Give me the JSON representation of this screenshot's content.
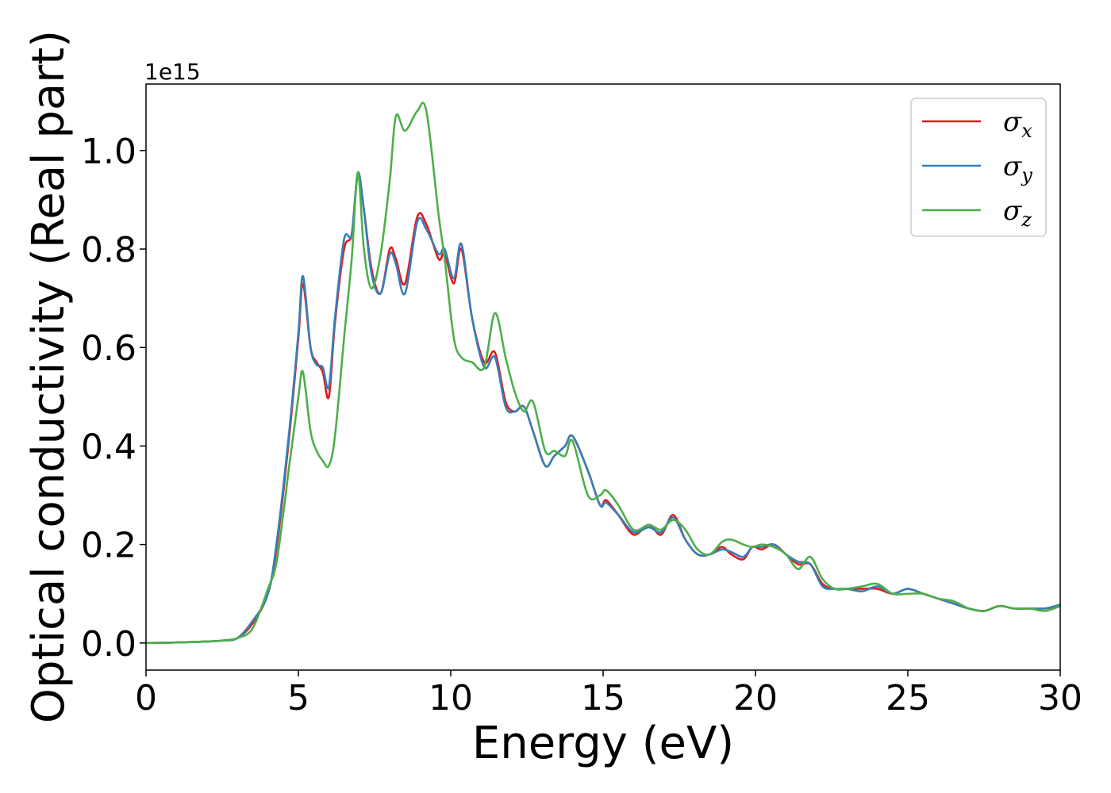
{
  "chart_data": {
    "type": "line",
    "title": "",
    "xlabel": "Energy (eV)",
    "ylabel": "Optical conductivity (Real part)",
    "y_offset_label": "1e15",
    "xlim": [
      0,
      30
    ],
    "ylim": [
      -0.055,
      1.135
    ],
    "xticks": [
      0,
      5,
      10,
      15,
      20,
      25,
      30
    ],
    "xtick_labels": [
      "0",
      "5",
      "10",
      "15",
      "20",
      "25",
      "30"
    ],
    "yticks": [
      0.0,
      0.2,
      0.4,
      0.6,
      0.8,
      1.0
    ],
    "ytick_labels": [
      "0.0",
      "0.2",
      "0.4",
      "0.6",
      "0.8",
      "1.0"
    ],
    "grid": false,
    "legend_position": "top-right",
    "series": [
      {
        "name": "σx",
        "symbol": "σ",
        "subscript": "x",
        "color": "#e41a1c",
        "x": [
          0,
          1,
          2,
          2.5,
          3,
          3.5,
          4,
          4.3,
          4.7,
          5.0,
          5.15,
          5.4,
          5.6,
          5.8,
          6.0,
          6.2,
          6.5,
          6.75,
          6.95,
          7.15,
          7.4,
          7.7,
          8.0,
          8.2,
          8.5,
          8.9,
          9.2,
          9.6,
          9.8,
          10.1,
          10.35,
          10.7,
          11.1,
          11.45,
          11.8,
          12.1,
          12.4,
          12.7,
          13.1,
          13.4,
          13.75,
          14.0,
          14.5,
          14.9,
          15.1,
          15.5,
          16.0,
          16.5,
          16.9,
          17.3,
          17.7,
          18.1,
          18.5,
          18.9,
          19.2,
          19.6,
          19.9,
          20.2,
          20.6,
          21.0,
          21.4,
          21.8,
          22.2,
          22.6,
          23.0,
          23.5,
          24.0,
          24.5,
          25.0,
          25.5,
          26.0,
          26.5,
          27.0,
          27.5,
          28.0,
          28.5,
          29.0,
          29.5,
          30.0
        ],
        "values": [
          0.0,
          0.001,
          0.003,
          0.005,
          0.01,
          0.04,
          0.1,
          0.2,
          0.42,
          0.62,
          0.73,
          0.6,
          0.57,
          0.55,
          0.5,
          0.65,
          0.8,
          0.83,
          0.95,
          0.88,
          0.76,
          0.71,
          0.8,
          0.78,
          0.73,
          0.865,
          0.85,
          0.78,
          0.79,
          0.73,
          0.8,
          0.66,
          0.57,
          0.59,
          0.49,
          0.47,
          0.48,
          0.43,
          0.36,
          0.38,
          0.4,
          0.42,
          0.35,
          0.28,
          0.29,
          0.26,
          0.22,
          0.24,
          0.22,
          0.26,
          0.21,
          0.18,
          0.18,
          0.195,
          0.18,
          0.17,
          0.195,
          0.19,
          0.2,
          0.18,
          0.16,
          0.16,
          0.12,
          0.11,
          0.11,
          0.11,
          0.11,
          0.1,
          0.11,
          0.1,
          0.09,
          0.08,
          0.07,
          0.065,
          0.075,
          0.07,
          0.07,
          0.07,
          0.075
        ]
      },
      {
        "name": "σy",
        "symbol": "σ",
        "subscript": "y",
        "color": "#377eb8",
        "x": [
          0,
          1,
          2,
          2.5,
          3,
          3.5,
          4,
          4.3,
          4.7,
          5.0,
          5.15,
          5.4,
          5.6,
          5.8,
          6.0,
          6.2,
          6.5,
          6.75,
          6.95,
          7.15,
          7.4,
          7.7,
          8.0,
          8.2,
          8.5,
          8.9,
          9.2,
          9.6,
          9.8,
          10.1,
          10.35,
          10.7,
          11.1,
          11.45,
          11.8,
          12.1,
          12.4,
          12.7,
          13.1,
          13.4,
          13.75,
          14.0,
          14.5,
          14.9,
          15.1,
          15.5,
          16.0,
          16.5,
          16.9,
          17.3,
          17.7,
          18.1,
          18.5,
          18.9,
          19.2,
          19.6,
          19.9,
          20.2,
          20.6,
          21.0,
          21.4,
          21.8,
          22.2,
          22.6,
          23.0,
          23.5,
          24.0,
          24.5,
          25.0,
          25.5,
          26.0,
          26.5,
          27.0,
          27.5,
          28.0,
          28.5,
          29.0,
          29.5,
          30.0
        ],
        "values": [
          0.0,
          0.001,
          0.003,
          0.005,
          0.01,
          0.045,
          0.1,
          0.21,
          0.43,
          0.63,
          0.745,
          0.6,
          0.565,
          0.56,
          0.52,
          0.66,
          0.82,
          0.83,
          0.955,
          0.88,
          0.75,
          0.71,
          0.79,
          0.77,
          0.71,
          0.855,
          0.84,
          0.79,
          0.8,
          0.74,
          0.81,
          0.66,
          0.56,
          0.58,
          0.48,
          0.47,
          0.48,
          0.43,
          0.36,
          0.38,
          0.4,
          0.42,
          0.35,
          0.28,
          0.285,
          0.26,
          0.225,
          0.235,
          0.225,
          0.255,
          0.21,
          0.18,
          0.18,
          0.19,
          0.185,
          0.175,
          0.195,
          0.195,
          0.2,
          0.18,
          0.165,
          0.16,
          0.115,
          0.11,
          0.11,
          0.105,
          0.115,
          0.1,
          0.11,
          0.1,
          0.09,
          0.08,
          0.07,
          0.065,
          0.075,
          0.07,
          0.07,
          0.07,
          0.078
        ]
      },
      {
        "name": "σz",
        "symbol": "σ",
        "subscript": "z",
        "color": "#4daf4a",
        "x": [
          0,
          1,
          2,
          2.5,
          3,
          3.5,
          4,
          4.3,
          4.7,
          5.0,
          5.15,
          5.4,
          5.6,
          5.8,
          6.0,
          6.2,
          6.5,
          6.75,
          6.95,
          7.15,
          7.4,
          7.7,
          8.0,
          8.2,
          8.5,
          8.9,
          9.2,
          9.6,
          9.8,
          10.1,
          10.35,
          10.7,
          11.1,
          11.45,
          11.8,
          12.1,
          12.4,
          12.7,
          13.1,
          13.4,
          13.75,
          14.0,
          14.5,
          14.9,
          15.1,
          15.5,
          16.0,
          16.5,
          16.9,
          17.3,
          17.7,
          18.1,
          18.5,
          18.9,
          19.2,
          19.6,
          19.9,
          20.2,
          20.6,
          21.0,
          21.4,
          21.8,
          22.2,
          22.6,
          23.0,
          23.5,
          24.0,
          24.5,
          25.0,
          25.5,
          26.0,
          26.5,
          27.0,
          27.5,
          28.0,
          28.5,
          29.0,
          29.5,
          30.0
        ],
        "values": [
          0.0,
          0.001,
          0.003,
          0.005,
          0.01,
          0.03,
          0.11,
          0.17,
          0.36,
          0.5,
          0.55,
          0.43,
          0.39,
          0.37,
          0.36,
          0.42,
          0.62,
          0.78,
          0.955,
          0.8,
          0.72,
          0.79,
          0.94,
          1.07,
          1.04,
          1.08,
          1.08,
          0.87,
          0.78,
          0.62,
          0.58,
          0.57,
          0.56,
          0.67,
          0.58,
          0.51,
          0.47,
          0.49,
          0.39,
          0.39,
          0.38,
          0.41,
          0.3,
          0.3,
          0.31,
          0.28,
          0.23,
          0.24,
          0.23,
          0.25,
          0.23,
          0.19,
          0.18,
          0.205,
          0.21,
          0.2,
          0.195,
          0.2,
          0.195,
          0.18,
          0.15,
          0.175,
          0.13,
          0.11,
          0.11,
          0.115,
          0.12,
          0.1,
          0.1,
          0.1,
          0.09,
          0.085,
          0.07,
          0.065,
          0.075,
          0.07,
          0.07,
          0.065,
          0.075
        ]
      }
    ]
  }
}
